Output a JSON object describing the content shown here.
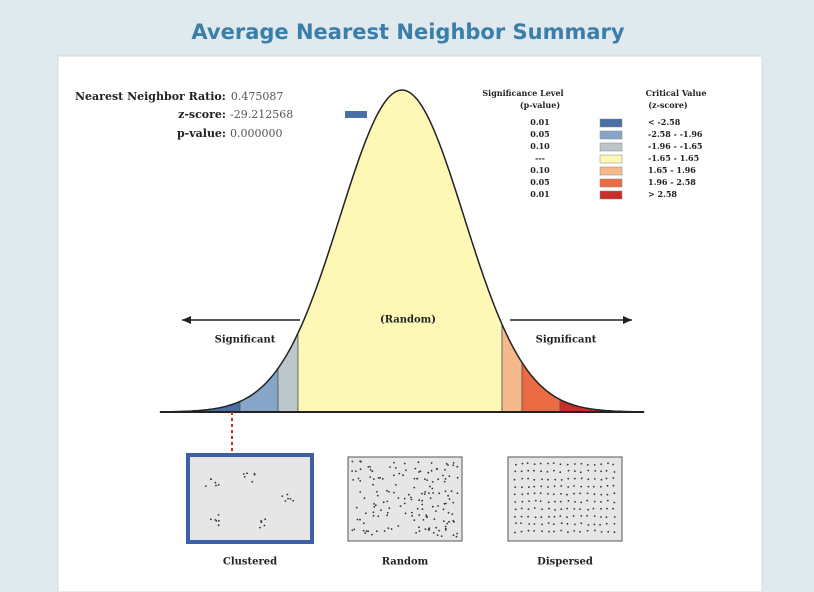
{
  "title": "Average Nearest Neighbor Summary",
  "stats": [
    {
      "label": "Nearest Neighbor Ratio:",
      "value": "0.475087"
    },
    {
      "label": "z-score:",
      "value": "-29.212568"
    },
    {
      "label": "p-value:",
      "value": "0.000000"
    }
  ],
  "legend": {
    "p_header": [
      "Significance Level",
      "(p-value)"
    ],
    "z_header": [
      "Critical Value",
      "(z-score)"
    ],
    "rows": [
      {
        "p": "0.01",
        "z": "< -2.58",
        "color": "#4a6fa5"
      },
      {
        "p": "0.05",
        "z": "-2.58 - -1.96",
        "color": "#86a5c9"
      },
      {
        "p": "0.10",
        "z": "-1.96 - -1.65",
        "color": "#bcc7cc"
      },
      {
        "p": "---",
        "z": "-1.65 - 1.65",
        "color": "#fdf8b6"
      },
      {
        "p": "0.10",
        "z": "1.65 - 1.96",
        "color": "#f6b98c"
      },
      {
        "p": "0.05",
        "z": "1.96 - 2.58",
        "color": "#ec6a44"
      },
      {
        "p": "0.01",
        "z": "> 2.58",
        "color": "#c62f2a"
      }
    ]
  },
  "curve_labels": {
    "left": "Significant",
    "center": "(Random)",
    "right": "Significant"
  },
  "patterns": [
    "Clustered",
    "Random",
    "Dispersed"
  ]
}
